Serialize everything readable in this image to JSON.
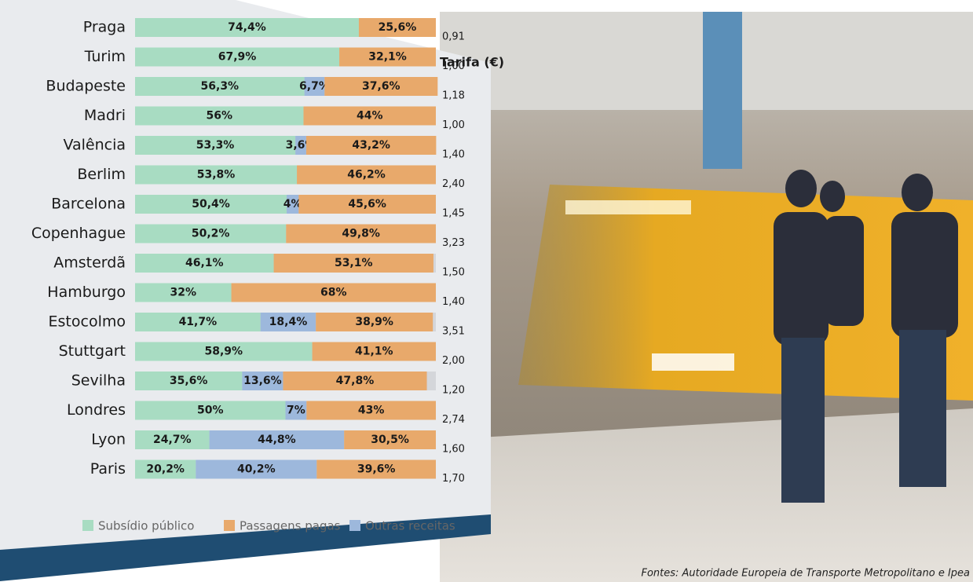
{
  "chart_data": {
    "type": "stacked_bar_horizontal",
    "categories": [
      "Praga",
      "Turim",
      "Budapeste",
      "Madri",
      "Valência",
      "Berlim",
      "Barcelona",
      "Copenhague",
      "Amsterdã",
      "Hamburgo",
      "Estocolmo",
      "Stuttgart",
      "Sevilha",
      "Londres",
      "Lyon",
      "Paris"
    ],
    "series": [
      {
        "name": "Subsídio público",
        "color": "#a8dcc2",
        "values": [
          74.4,
          67.9,
          56.3,
          56,
          53.3,
          53.8,
          50.4,
          50.2,
          46.1,
          32,
          41.7,
          58.9,
          35.6,
          50,
          24.7,
          20.2
        ],
        "value_labels": [
          "74,4%",
          "67,9%",
          "56,3%",
          "56%",
          "53,3%",
          "53,8%",
          "50,4%",
          "50,2%",
          "46,1%",
          "32%",
          "41,7%",
          "58,9%",
          "35,6%",
          "50%",
          "24,7%",
          "20,2%"
        ]
      },
      {
        "name": "Passagens pagas",
        "color": "#e8a96b",
        "values": [
          25.6,
          32.1,
          37.6,
          44,
          43.2,
          46.2,
          45.6,
          49.8,
          53.1,
          68,
          38.9,
          41.1,
          47.8,
          43,
          30.5,
          39.6
        ],
        "value_labels": [
          "25,6%",
          "32,1%",
          "37,6%",
          "44%",
          "43,2%",
          "46,2%",
          "45,6%",
          "49,8%",
          "53,1%",
          "68%",
          "38,9%",
          "41,1%",
          "47,8%",
          "43%",
          "30,5%",
          "39,6%"
        ]
      },
      {
        "name": "Outras receitas",
        "color": "#9db8dc",
        "values": [
          null,
          null,
          6.7,
          null,
          3.6,
          null,
          4,
          null,
          null,
          null,
          18.4,
          null,
          13.6,
          7,
          44.8,
          40.2
        ],
        "value_labels": [
          null,
          null,
          "6,7%",
          null,
          "3,6%",
          null,
          "4%",
          null,
          null,
          null,
          "18,4%",
          null,
          "13,6%",
          "7%",
          "44,8%",
          "40,2%"
        ]
      }
    ],
    "xlim": [
      0,
      100
    ],
    "tarifa_title": "Tarifa (€)",
    "tarifa": [
      "0,91",
      "1,00",
      "1,18",
      "1,00",
      "1,40",
      "2,40",
      "1,45",
      "3,23",
      "1,50",
      "1,40",
      "3,51",
      "2,00",
      "1,20",
      "2,74",
      "1,60",
      "1,70"
    ],
    "source": "Fontes: Autoridade Europeia de Transporte Metropolitano e Ipea"
  }
}
